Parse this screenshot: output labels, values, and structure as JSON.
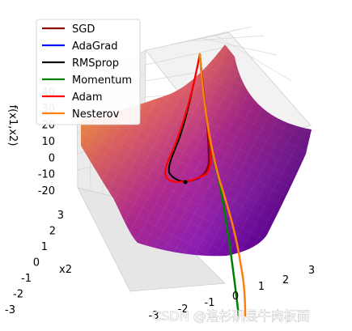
{
  "chart_data": {
    "type": "surface3d",
    "title": "",
    "xlabel": "",
    "ylabel": "x2",
    "zlabel": "f(x1,x2)",
    "x_ticks": [
      "-3",
      "-2",
      "-1",
      "0",
      "1",
      "2",
      "3"
    ],
    "y_ticks": [
      "-3",
      "-2",
      "-1",
      "0",
      "1",
      "2",
      "3"
    ],
    "z_ticks": [
      "-20",
      "-10",
      "0",
      "10",
      "20",
      "30",
      "40"
    ],
    "xlim": [
      -3,
      3
    ],
    "ylim": [
      -3,
      3
    ],
    "zlim": [
      -20,
      40
    ],
    "colormap": "plasma",
    "grid": true,
    "legend_position": "top-left",
    "series": [
      {
        "name": "SGD",
        "color": "#8b0000"
      },
      {
        "name": "AdaGrad",
        "color": "#0000ff"
      },
      {
        "name": "RMSprop",
        "color": "#000000"
      },
      {
        "name": "Momentum",
        "color": "#008000"
      },
      {
        "name": "Adam",
        "color": "#ff0000"
      },
      {
        "name": "Nesterov",
        "color": "#ff7f0e"
      }
    ]
  },
  "watermark": "CSDN @洛杉矶县牛肉板面"
}
